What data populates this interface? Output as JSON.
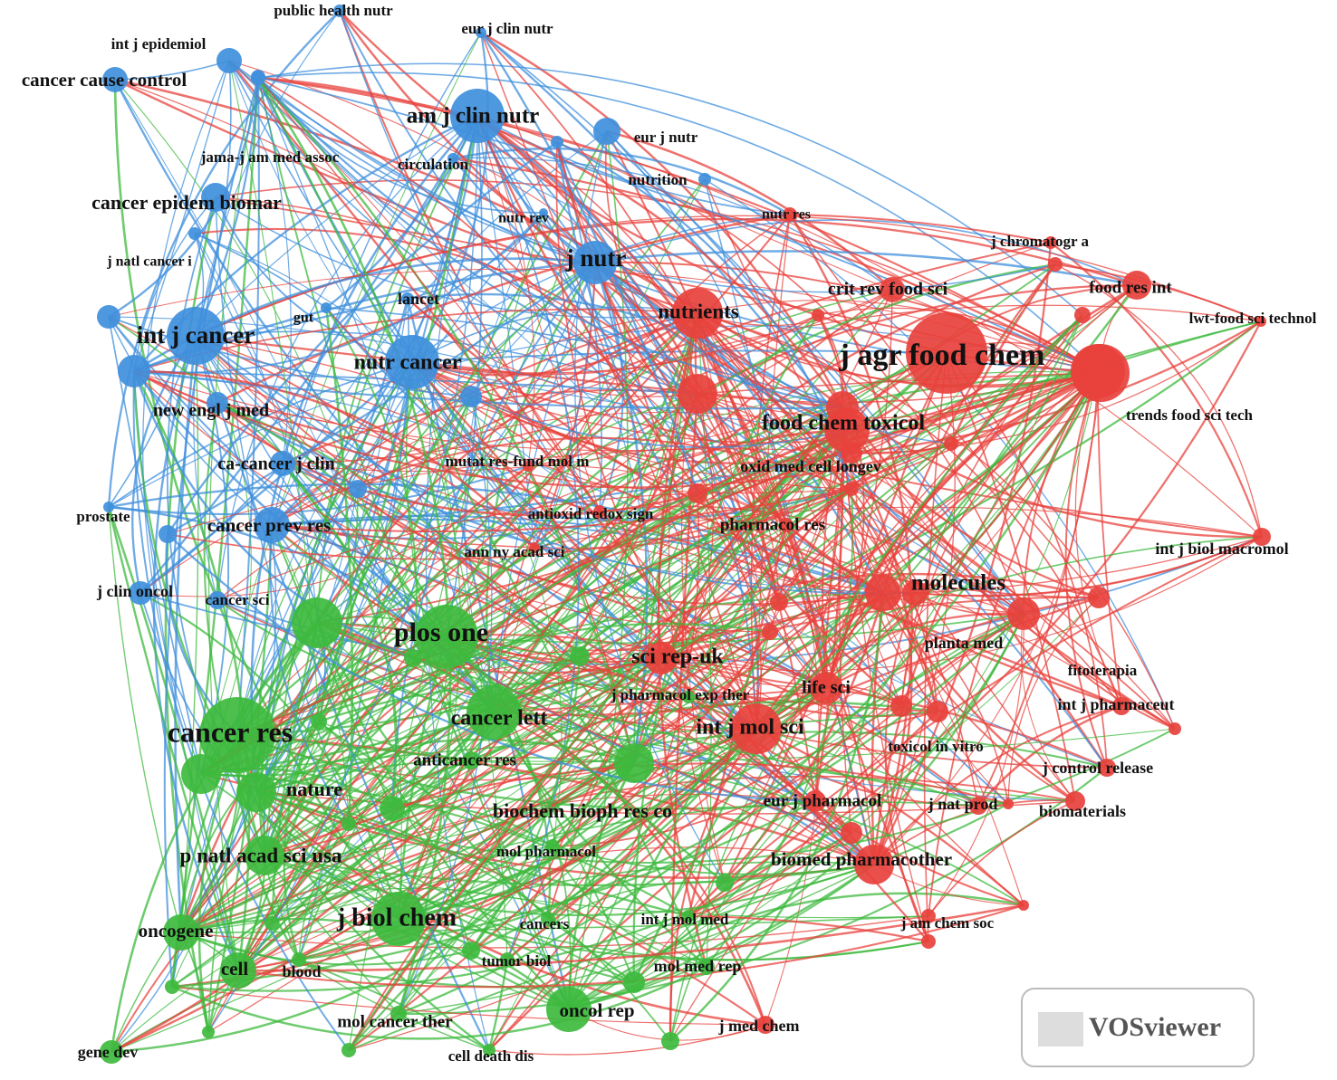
{
  "clusters": [
    {
      "color": "#e8413c"
    },
    {
      "color": "#3dba3d"
    },
    {
      "color": "#3f8fdc"
    }
  ],
  "nodes": [
    {
      "label": "public health nutr",
      "cluster": 2
    },
    {
      "label": "int j epidemiol",
      "cluster": 2
    },
    {
      "label": "eur j clin nutr",
      "cluster": 2
    },
    {
      "label": "cancer cause control",
      "cluster": 2
    },
    {
      "label": "am j clin nutr",
      "cluster": 2
    },
    {
      "label": "eur j nutr",
      "cluster": 2
    },
    {
      "label": "jama-j am med assoc",
      "cluster": 2
    },
    {
      "label": "circulation",
      "cluster": 2
    },
    {
      "label": "nutrition",
      "cluster": 2
    },
    {
      "label": "cancer epidem biomar",
      "cluster": 2
    },
    {
      "label": "nutr rev",
      "cluster": 2
    },
    {
      "label": "j natl cancer i",
      "cluster": 2
    },
    {
      "label": "j nutr",
      "cluster": 2
    },
    {
      "label": "lancet",
      "cluster": 2
    },
    {
      "label": "gut",
      "cluster": 2
    },
    {
      "label": "int j cancer",
      "cluster": 2
    },
    {
      "label": "nutr cancer",
      "cluster": 2
    },
    {
      "label": "new engl j med",
      "cluster": 2
    },
    {
      "label": "ca-cancer j clin",
      "cluster": 2
    },
    {
      "label": "prostate",
      "cluster": 2
    },
    {
      "label": "cancer prev res",
      "cluster": 2
    },
    {
      "label": "j clin oncol",
      "cluster": 2
    },
    {
      "label": "cancer sci",
      "cluster": 2
    },
    {
      "label": "nutr res",
      "cluster": 0
    },
    {
      "label": "j chromatogr a",
      "cluster": 0
    },
    {
      "label": "crit rev food sci",
      "cluster": 0
    },
    {
      "label": "food res int",
      "cluster": 0
    },
    {
      "label": "nutrients",
      "cluster": 0
    },
    {
      "label": "lwt-food sci technol",
      "cluster": 0
    },
    {
      "label": "j agr food chem",
      "cluster": 0
    },
    {
      "label": "trends food sci tech",
      "cluster": 0
    },
    {
      "label": "food chem toxicol",
      "cluster": 0
    },
    {
      "label": "oxid med cell longev",
      "cluster": 0
    },
    {
      "label": "mutat res-fund mol m",
      "cluster": 0
    },
    {
      "label": "antioxid redox sign",
      "cluster": 0
    },
    {
      "label": "pharmacol res",
      "cluster": 0
    },
    {
      "label": "ann ny acad sci",
      "cluster": 0
    },
    {
      "label": "int j biol macromol",
      "cluster": 0
    },
    {
      "label": "molecules",
      "cluster": 0
    },
    {
      "label": "planta med",
      "cluster": 0
    },
    {
      "label": "sci rep-uk",
      "cluster": 0
    },
    {
      "label": "fitoterapia",
      "cluster": 0
    },
    {
      "label": "life sci",
      "cluster": 0
    },
    {
      "label": "j pharmacol exp ther",
      "cluster": 1
    },
    {
      "label": "int j pharmaceut",
      "cluster": 0
    },
    {
      "label": "int j mol sci",
      "cluster": 0
    },
    {
      "label": "toxicol in vitro",
      "cluster": 0
    },
    {
      "label": "j control release",
      "cluster": 0
    },
    {
      "label": "j nat prod",
      "cluster": 0
    },
    {
      "label": "biomaterials",
      "cluster": 0
    },
    {
      "label": "eur j pharmacol",
      "cluster": 0
    },
    {
      "label": "biomed pharmacother",
      "cluster": 0
    },
    {
      "label": "j am chem soc",
      "cluster": 0
    },
    {
      "label": "j med chem",
      "cluster": 0
    },
    {
      "label": "plos one",
      "cluster": 1
    },
    {
      "label": "cancer res",
      "cluster": 1
    },
    {
      "label": "cancer lett",
      "cluster": 1
    },
    {
      "label": "anticancer res",
      "cluster": 1
    },
    {
      "label": "nature",
      "cluster": 1
    },
    {
      "label": "biochem bioph res co",
      "cluster": 1
    },
    {
      "label": "p natl acad sci usa",
      "cluster": 1
    },
    {
      "label": "mol pharmacol",
      "cluster": 1
    },
    {
      "label": "j biol chem",
      "cluster": 1
    },
    {
      "label": "oncogene",
      "cluster": 1
    },
    {
      "label": "cancers",
      "cluster": 1
    },
    {
      "label": "int j mol med",
      "cluster": 1
    },
    {
      "label": "cell",
      "cluster": 1
    },
    {
      "label": "blood",
      "cluster": 1
    },
    {
      "label": "tumor biol",
      "cluster": 1
    },
    {
      "label": "mol med rep",
      "cluster": 1
    },
    {
      "label": "mol cancer ther",
      "cluster": 1
    },
    {
      "label": "oncol rep",
      "cluster": 1
    },
    {
      "label": "gene dev",
      "cluster": 1
    },
    {
      "label": "cell death dis",
      "cluster": 1
    }
  ],
  "watermark": "VOSviewer"
}
